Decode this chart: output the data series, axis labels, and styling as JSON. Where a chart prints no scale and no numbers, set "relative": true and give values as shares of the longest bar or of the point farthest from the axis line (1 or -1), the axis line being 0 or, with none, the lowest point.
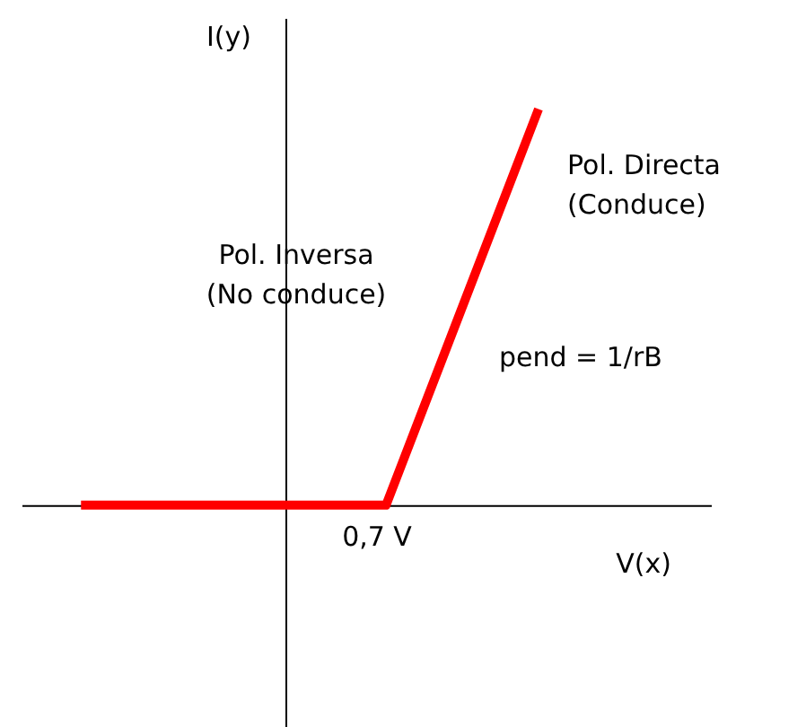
{
  "chart_data": {
    "type": "line",
    "relative": true,
    "xlabel": "V(x)",
    "ylabel": "I(y)",
    "categories": [
      null,
      null,
      null,
      null
    ],
    "series": [
      {
        "color": "#ff0000",
        "values": [
          0,
          0,
          0,
          1
        ]
      }
    ],
    "annotations": [
      "0,7 V",
      "Pol. Directa\n(Conduce)",
      "Pol. Inversa\n(No conduce)",
      "pend = 1/rB"
    ],
    "grid": false,
    "marker": "none",
    "line_style": "solid"
  }
}
